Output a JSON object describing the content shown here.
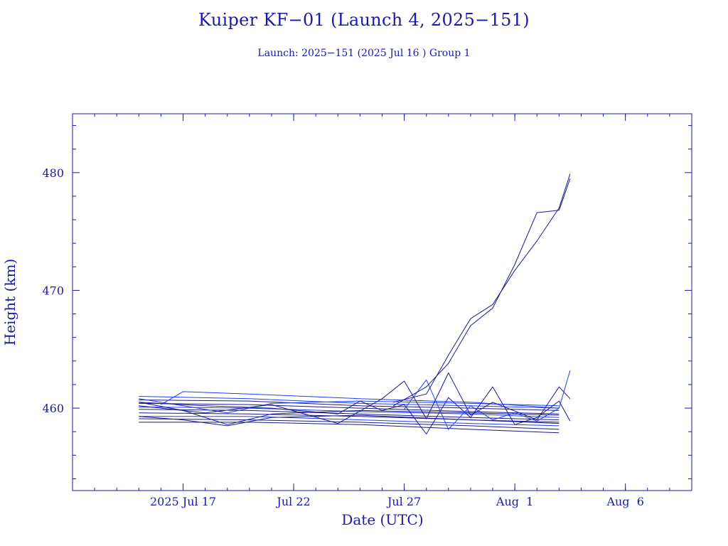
{
  "chart_data": {
    "type": "line",
    "title": "Kuiper KF−01 (Launch 4, 2025−151)",
    "subtitle": "Launch: 2025−151  (2025 Jul 16 )  Group 1",
    "xlabel": "Date (UTC)",
    "ylabel": "Height (km)",
    "xlim": [
      "2025-07-12",
      "2025-08-09"
    ],
    "ylim": [
      453,
      485
    ],
    "x_ticks": [
      {
        "date": "2025-07-17",
        "label": "2025 Jul 17"
      },
      {
        "date": "2025-07-22",
        "label": "Jul 22"
      },
      {
        "date": "2025-07-27",
        "label": "Jul 27"
      },
      {
        "date": "2025-08-01",
        "label": "Aug  1"
      },
      {
        "date": "2025-08-06",
        "label": "Aug  6"
      }
    ],
    "y_ticks": [
      460,
      470,
      480
    ],
    "grid": false,
    "colors": {
      "text": "#1a1aa8",
      "axes": "#1a1aa8",
      "series_dark": "#1a1a8c",
      "series_bright": "#1f3fff"
    },
    "series": [
      {
        "x": [
          "2025-07-15",
          "2025-07-20",
          "2025-07-25",
          "2025-07-30",
          "2025-08-03"
        ],
        "y": [
          461.0,
          460.8,
          460.4,
          460.2,
          460.0
        ]
      },
      {
        "x": [
          "2025-07-15",
          "2025-07-20",
          "2025-07-25",
          "2025-07-30",
          "2025-08-03"
        ],
        "y": [
          460.7,
          460.6,
          460.2,
          460.0,
          459.8
        ]
      },
      {
        "x": [
          "2025-07-15",
          "2025-07-20",
          "2025-07-25",
          "2025-07-30",
          "2025-08-03"
        ],
        "y": [
          460.4,
          460.3,
          460.0,
          459.7,
          459.5
        ]
      },
      {
        "x": [
          "2025-07-15",
          "2025-07-20",
          "2025-07-25",
          "2025-07-30",
          "2025-08-03"
        ],
        "y": [
          460.1,
          460.0,
          459.7,
          459.5,
          459.2
        ]
      },
      {
        "x": [
          "2025-07-15",
          "2025-07-20",
          "2025-07-25",
          "2025-07-30",
          "2025-08-03"
        ],
        "y": [
          459.9,
          459.8,
          459.5,
          459.2,
          459.0
        ]
      },
      {
        "x": [
          "2025-07-15",
          "2025-07-20",
          "2025-07-25",
          "2025-07-30",
          "2025-08-03"
        ],
        "y": [
          459.6,
          459.5,
          459.3,
          459.0,
          458.8
        ]
      },
      {
        "x": [
          "2025-07-15",
          "2025-07-20",
          "2025-07-25",
          "2025-07-30",
          "2025-08-03"
        ],
        "y": [
          459.3,
          459.3,
          459.0,
          458.7,
          458.5
        ]
      },
      {
        "x": [
          "2025-07-15",
          "2025-07-20",
          "2025-07-25",
          "2025-07-30",
          "2025-08-03"
        ],
        "y": [
          459.1,
          459.0,
          458.8,
          458.5,
          458.2
        ]
      },
      {
        "x": [
          "2025-07-15",
          "2025-07-20",
          "2025-07-25",
          "2025-07-30",
          "2025-08-03"
        ],
        "y": [
          458.8,
          458.8,
          458.6,
          458.2,
          457.9
        ]
      },
      {
        "x": [
          "2025-07-15",
          "2025-07-17",
          "2025-07-19",
          "2025-07-21",
          "2025-07-25",
          "2025-07-30",
          "2025-08-03"
        ],
        "y": [
          460.8,
          460.2,
          459.6,
          460.4,
          460.6,
          460.4,
          460.2
        ]
      },
      {
        "x": [
          "2025-07-15",
          "2025-07-17",
          "2025-07-19",
          "2025-07-21",
          "2025-07-25",
          "2025-07-30",
          "2025-08-03"
        ],
        "y": [
          460.5,
          459.8,
          458.6,
          459.5,
          459.8,
          459.6,
          459.4
        ]
      },
      {
        "x": [
          "2025-07-15",
          "2025-07-17",
          "2025-07-19",
          "2025-07-21",
          "2025-07-25",
          "2025-07-30",
          "2025-08-03"
        ],
        "y": [
          459.3,
          459.0,
          458.5,
          459.2,
          459.4,
          459.0,
          458.7
        ]
      },
      {
        "x": [
          "2025-07-16",
          "2025-07-17",
          "2025-07-20",
          "2025-07-25",
          "2025-07-30",
          "2025-08-03"
        ],
        "y": [
          460.3,
          461.4,
          461.2,
          460.8,
          460.5,
          460.0
        ]
      },
      {
        "x": [
          "2025-07-15",
          "2025-07-18",
          "2025-07-21",
          "2025-07-24",
          "2025-07-25",
          "2025-07-26",
          "2025-07-27",
          "2025-07-28",
          "2025-07-29",
          "2025-07-30",
          "2025-07-31",
          "2025-08-01",
          "2025-08-02",
          "2025-08-03",
          "2025-08-03.5"
        ],
        "y": [
          460.5,
          460.2,
          460.0,
          459.5,
          460.6,
          459.8,
          460.3,
          457.8,
          460.9,
          459.2,
          461.8,
          458.6,
          459.2,
          460.6,
          458.9
        ]
      },
      {
        "x": [
          "2025-07-15",
          "2025-07-18",
          "2025-07-21",
          "2025-07-24",
          "2025-07-26",
          "2025-07-27",
          "2025-07-28",
          "2025-07-29",
          "2025-07-30",
          "2025-07-31",
          "2025-08-02",
          "2025-08-03",
          "2025-08-03.5"
        ],
        "y": [
          460.2,
          459.6,
          460.3,
          458.7,
          460.8,
          462.3,
          459.1,
          463.0,
          459.4,
          460.5,
          459.0,
          461.8,
          460.8
        ]
      },
      {
        "x": [
          "2025-07-27",
          "2025-07-28",
          "2025-07-29",
          "2025-07-30",
          "2025-07-31",
          "2025-08-01",
          "2025-08-02",
          "2025-08-03",
          "2025-08-03.5"
        ],
        "y": [
          459.9,
          462.4,
          458.2,
          460.2,
          459.0,
          459.6,
          458.9,
          460.0,
          463.2
        ]
      },
      {
        "x": [
          "2025-07-26.5",
          "2025-07-28",
          "2025-07-29",
          "2025-07-30",
          "2025-07-31",
          "2025-08-01",
          "2025-08-02",
          "2025-08-03",
          "2025-08-03.5"
        ],
        "y": [
          460.5,
          461.2,
          464.5,
          467.6,
          468.8,
          471.7,
          474.2,
          477.0,
          479.9
        ]
      },
      {
        "x": [
          "2025-07-26.5",
          "2025-07-28",
          "2025-07-29",
          "2025-07-30",
          "2025-07-31",
          "2025-08-01",
          "2025-08-02",
          "2025-08-03",
          "2025-08-03.5"
        ],
        "y": [
          460.2,
          461.8,
          463.8,
          467.0,
          468.5,
          472.2,
          476.6,
          476.8,
          479.5
        ]
      }
    ]
  }
}
